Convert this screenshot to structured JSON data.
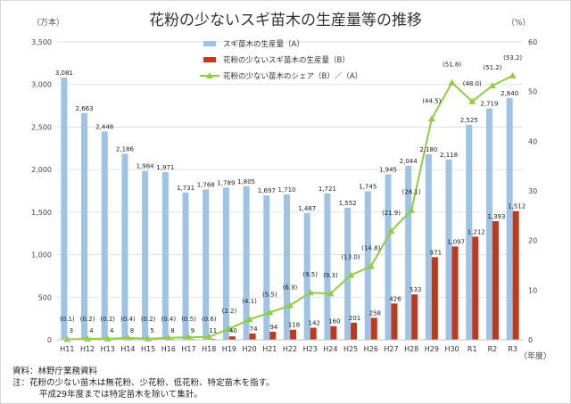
{
  "chart_data": {
    "type": "bar",
    "title": "花粉の少ないスギ苗木の生産量等の推移",
    "ylabel": "（万本）",
    "y2label": "（%）",
    "xlabel": "（年度）",
    "ylim": [
      0,
      3500
    ],
    "yticks": [
      "0",
      "500",
      "1,000",
      "1,500",
      "2,000",
      "2,500",
      "3,000",
      "3,500"
    ],
    "y2lim": [
      0,
      60
    ],
    "y2ticks": [
      "0",
      "10",
      "20",
      "30",
      "40",
      "50",
      "60"
    ],
    "grid": true,
    "legend_position": "top-center",
    "categories": [
      "H11",
      "H12",
      "H13",
      "H14",
      "H15",
      "H16",
      "H17",
      "H18",
      "H19",
      "H20",
      "H21",
      "H22",
      "H23",
      "H24",
      "H25",
      "H26",
      "H27",
      "H28",
      "H29",
      "H30",
      "R1",
      "R2",
      "R3"
    ],
    "series": [
      {
        "name": "スギ苗木の生産量（A）",
        "kind": "bar",
        "color": "#9dc3e6",
        "values": [
          3081,
          2663,
          2448,
          2186,
          1984,
          1971,
          1731,
          1768,
          1789,
          1805,
          1697,
          1710,
          1487,
          1721,
          1552,
          1745,
          1945,
          2044,
          2180,
          2118,
          2525,
          2719,
          2840
        ],
        "labels": [
          "3,081",
          "2,663",
          "2,448",
          "2,186",
          "1,984",
          "1,971",
          "1,731",
          "1,768",
          "1,789",
          "1,805",
          "1,697",
          "1,710",
          "1,487",
          "1,721",
          "1,552",
          "1,745",
          "1,945",
          "2,044",
          "2,180",
          "2,118",
          "2,525",
          "2,719",
          "2,840"
        ]
      },
      {
        "name": "花粉の少ないスギ苗木の生産量（B）",
        "kind": "bar",
        "color": "#c0391b",
        "values": [
          3,
          4,
          4,
          8,
          5,
          8,
          9,
          11,
          40,
          74,
          94,
          118,
          142,
          160,
          201,
          258,
          426,
          533,
          971,
          1097,
          1212,
          1393,
          1512
        ],
        "labels": [
          "3",
          "4",
          "4",
          "8",
          "5",
          "8",
          "9",
          "11",
          "40",
          "74",
          "94",
          "118",
          "142",
          "160",
          "201",
          "258",
          "426",
          "533",
          "971",
          "1,097",
          "1,212",
          "1,393",
          "1,512"
        ]
      },
      {
        "name": "花粉の少ない苗木のシェア（B）／（A）",
        "kind": "line",
        "axis": "right",
        "color": "#8fce3f",
        "values": [
          0.1,
          0.2,
          0.2,
          0.4,
          0.2,
          0.4,
          0.5,
          0.6,
          2.2,
          4.1,
          5.5,
          6.9,
          9.5,
          9.3,
          13.0,
          14.8,
          21.9,
          26.1,
          44.5,
          51.8,
          48.0,
          51.2,
          53.2
        ],
        "labels": [
          "(0.1)",
          "(0.2)",
          "(0.2)",
          "(0.4)",
          "(0.2)",
          "(0.4)",
          "(0.5)",
          "(0.6)",
          "(2.2)",
          "(4.1)",
          "(5.5)",
          "(6.9)",
          "(9.5)",
          "(9.3)",
          "(13.0)",
          "(14.8)",
          "(21.9)",
          "(26.1)",
          "(44.5)",
          "(51.8)",
          "(48.0)",
          "(51.2)",
          "(53.2)"
        ]
      }
    ]
  },
  "notes": {
    "source": "資料：林野庁業務資料",
    "note1": "注：花粉の少ない苗木は無花粉、少花粉、低花粉、特定苗木を指す。",
    "note2": "平成29年度までは特定苗木を除いて集計。"
  }
}
